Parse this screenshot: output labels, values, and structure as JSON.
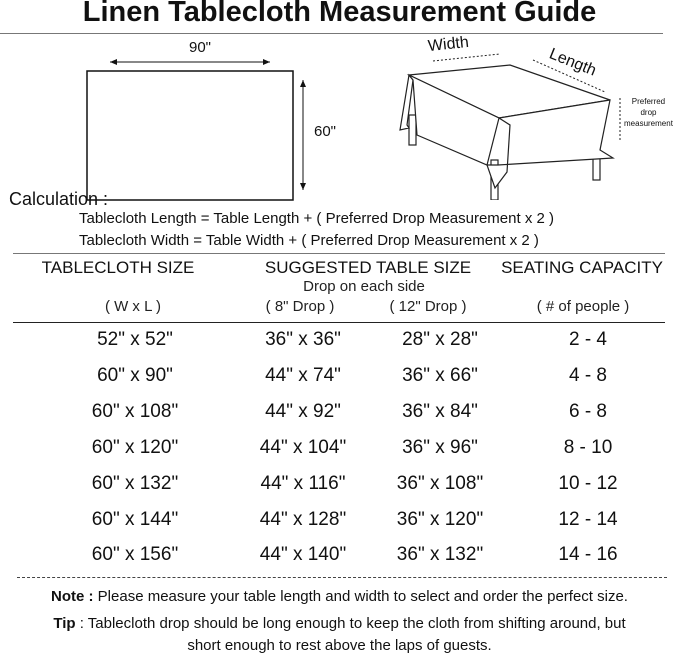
{
  "title": "Linen Tablecloth Measurement Guide",
  "diagram": {
    "width_label": "90\"",
    "height_label": "60\"",
    "iso_width": "Width",
    "iso_length": "Length",
    "drop_label": [
      "Preferred",
      "drop",
      "measurement"
    ]
  },
  "calculation": {
    "heading": "Calculation :",
    "length_formula": "Tablecloth Length = Table Length + ( Preferred Drop Measurement x 2 )",
    "width_formula": "Tablecloth Width = Table Width + ( Preferred Drop Measurement x 2 )"
  },
  "table": {
    "headers": [
      "TABLECLOTH SIZE",
      "SUGGESTED TABLE SIZE",
      "SEATING CAPACITY"
    ],
    "drop_note": "Drop on each side",
    "subheaders": [
      "( W x L )",
      "( 8\" Drop )",
      "( 12\" Drop )",
      "( # of people )"
    ],
    "rows": [
      [
        "52\" x 52\"",
        "36\" x 36\"",
        "28\" x 28\"",
        "2 - 4"
      ],
      [
        "60\" x 90\"",
        "44\" x 74\"",
        "36\" x 66\"",
        "4 - 8"
      ],
      [
        "60\" x 108\"",
        "44\" x 92\"",
        "36\" x 84\"",
        "6 - 8"
      ],
      [
        "60\" x 120\"",
        "44\" x 104\"",
        "36\" x 96\"",
        "8 - 10"
      ],
      [
        "60\" x 132\"",
        "44\" x 116\"",
        "36\" x 108\"",
        "10 - 12"
      ],
      [
        "60\" x 144\"",
        "44\" x 128\"",
        "36\" x 120\"",
        "12 - 14"
      ],
      [
        "60\" x 156\"",
        "44\" x 140\"",
        "36\" x 132\"",
        "14 - 16"
      ]
    ]
  },
  "note": {
    "label": "Note :",
    "text": " Please measure your table length and width to select and order the perfect size."
  },
  "tip": {
    "label": "Tip",
    "text": " : Tablecloth drop should be long enough to keep the cloth from shifting around, but",
    "text2": "short enough to rest above the laps of guests."
  }
}
